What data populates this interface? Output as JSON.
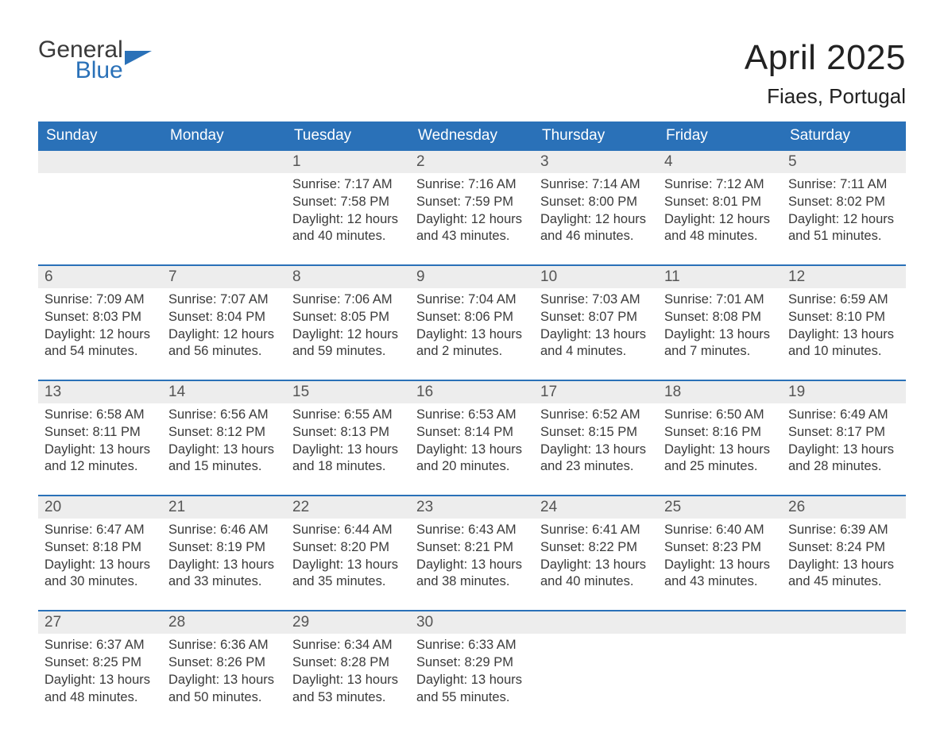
{
  "logo": {
    "line1": "General",
    "line2": "Blue"
  },
  "title": "April 2025",
  "location": "Fiaes, Portugal",
  "colors": {
    "accent": "#2a71b8",
    "header_text": "#ffffff",
    "date_bg": "#ededed",
    "body_text": "#3a3a3a",
    "page_bg": "#ffffff"
  },
  "weekdays": [
    "Sunday",
    "Monday",
    "Tuesday",
    "Wednesday",
    "Thursday",
    "Friday",
    "Saturday"
  ],
  "labels": {
    "sunrise": "Sunrise:",
    "sunset": "Sunset:",
    "daylight": "Daylight:"
  },
  "weeks": [
    [
      null,
      null,
      {
        "d": "1",
        "sr": "7:17 AM",
        "ss": "7:58 PM",
        "dl": "12 hours and 40 minutes."
      },
      {
        "d": "2",
        "sr": "7:16 AM",
        "ss": "7:59 PM",
        "dl": "12 hours and 43 minutes."
      },
      {
        "d": "3",
        "sr": "7:14 AM",
        "ss": "8:00 PM",
        "dl": "12 hours and 46 minutes."
      },
      {
        "d": "4",
        "sr": "7:12 AM",
        "ss": "8:01 PM",
        "dl": "12 hours and 48 minutes."
      },
      {
        "d": "5",
        "sr": "7:11 AM",
        "ss": "8:02 PM",
        "dl": "12 hours and 51 minutes."
      }
    ],
    [
      {
        "d": "6",
        "sr": "7:09 AM",
        "ss": "8:03 PM",
        "dl": "12 hours and 54 minutes."
      },
      {
        "d": "7",
        "sr": "7:07 AM",
        "ss": "8:04 PM",
        "dl": "12 hours and 56 minutes."
      },
      {
        "d": "8",
        "sr": "7:06 AM",
        "ss": "8:05 PM",
        "dl": "12 hours and 59 minutes."
      },
      {
        "d": "9",
        "sr": "7:04 AM",
        "ss": "8:06 PM",
        "dl": "13 hours and 2 minutes."
      },
      {
        "d": "10",
        "sr": "7:03 AM",
        "ss": "8:07 PM",
        "dl": "13 hours and 4 minutes."
      },
      {
        "d": "11",
        "sr": "7:01 AM",
        "ss": "8:08 PM",
        "dl": "13 hours and 7 minutes."
      },
      {
        "d": "12",
        "sr": "6:59 AM",
        "ss": "8:10 PM",
        "dl": "13 hours and 10 minutes."
      }
    ],
    [
      {
        "d": "13",
        "sr": "6:58 AM",
        "ss": "8:11 PM",
        "dl": "13 hours and 12 minutes."
      },
      {
        "d": "14",
        "sr": "6:56 AM",
        "ss": "8:12 PM",
        "dl": "13 hours and 15 minutes."
      },
      {
        "d": "15",
        "sr": "6:55 AM",
        "ss": "8:13 PM",
        "dl": "13 hours and 18 minutes."
      },
      {
        "d": "16",
        "sr": "6:53 AM",
        "ss": "8:14 PM",
        "dl": "13 hours and 20 minutes."
      },
      {
        "d": "17",
        "sr": "6:52 AM",
        "ss": "8:15 PM",
        "dl": "13 hours and 23 minutes."
      },
      {
        "d": "18",
        "sr": "6:50 AM",
        "ss": "8:16 PM",
        "dl": "13 hours and 25 minutes."
      },
      {
        "d": "19",
        "sr": "6:49 AM",
        "ss": "8:17 PM",
        "dl": "13 hours and 28 minutes."
      }
    ],
    [
      {
        "d": "20",
        "sr": "6:47 AM",
        "ss": "8:18 PM",
        "dl": "13 hours and 30 minutes."
      },
      {
        "d": "21",
        "sr": "6:46 AM",
        "ss": "8:19 PM",
        "dl": "13 hours and 33 minutes."
      },
      {
        "d": "22",
        "sr": "6:44 AM",
        "ss": "8:20 PM",
        "dl": "13 hours and 35 minutes."
      },
      {
        "d": "23",
        "sr": "6:43 AM",
        "ss": "8:21 PM",
        "dl": "13 hours and 38 minutes."
      },
      {
        "d": "24",
        "sr": "6:41 AM",
        "ss": "8:22 PM",
        "dl": "13 hours and 40 minutes."
      },
      {
        "d": "25",
        "sr": "6:40 AM",
        "ss": "8:23 PM",
        "dl": "13 hours and 43 minutes."
      },
      {
        "d": "26",
        "sr": "6:39 AM",
        "ss": "8:24 PM",
        "dl": "13 hours and 45 minutes."
      }
    ],
    [
      {
        "d": "27",
        "sr": "6:37 AM",
        "ss": "8:25 PM",
        "dl": "13 hours and 48 minutes."
      },
      {
        "d": "28",
        "sr": "6:36 AM",
        "ss": "8:26 PM",
        "dl": "13 hours and 50 minutes."
      },
      {
        "d": "29",
        "sr": "6:34 AM",
        "ss": "8:28 PM",
        "dl": "13 hours and 53 minutes."
      },
      {
        "d": "30",
        "sr": "6:33 AM",
        "ss": "8:29 PM",
        "dl": "13 hours and 55 minutes."
      },
      null,
      null,
      null
    ]
  ]
}
